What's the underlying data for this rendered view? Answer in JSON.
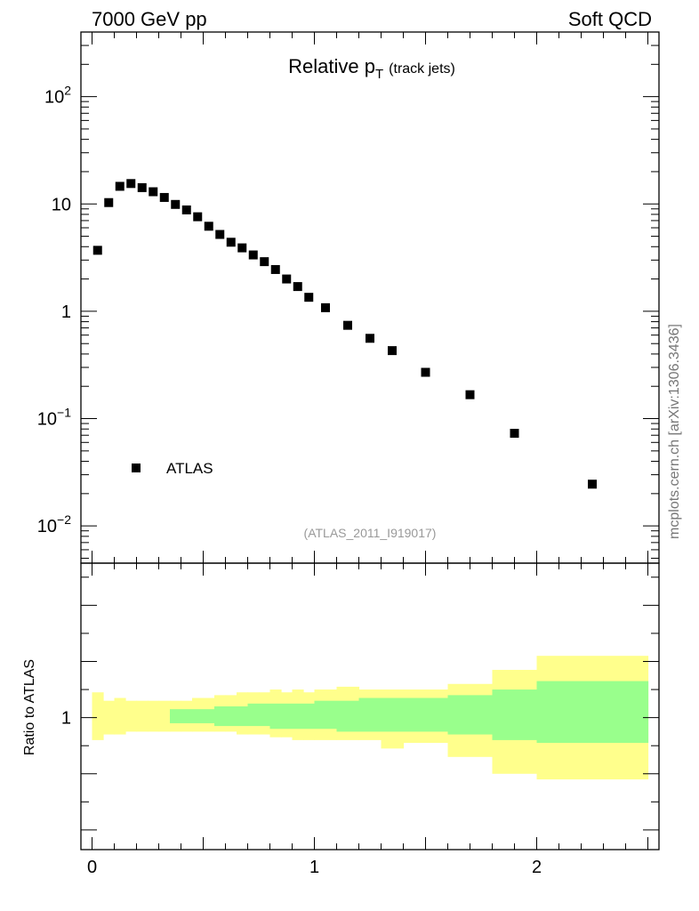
{
  "header": {
    "left": "7000 GeV pp",
    "right": "Soft QCD"
  },
  "side_label": "mcplots.cern.ch [arXiv:1306.3436]",
  "chart_data": [
    {
      "type": "scatter",
      "title": "Relative p",
      "title_subscript": "T",
      "title_suffix": "(track jets)",
      "y_scale": "log",
      "ylim": [
        0.0045,
        400
      ],
      "xlim": [
        -0.05,
        2.55
      ],
      "y_tick_labels": [
        {
          "value": 100,
          "base": "10",
          "exp": "2"
        },
        {
          "value": 10,
          "text": "10"
        },
        {
          "value": 1,
          "text": "1"
        },
        {
          "value": 0.1,
          "base": "10",
          "exp": "−1"
        },
        {
          "value": 0.01,
          "base": "10",
          "exp": "−2"
        }
      ],
      "legend": {
        "position": "bottom-left",
        "entries": [
          "ATLAS"
        ]
      },
      "annotation": "(ATLAS_2011_I919017)",
      "series": [
        {
          "name": "ATLAS",
          "marker": "square",
          "color": "#000000",
          "points": [
            [
              0.025,
              3.7
            ],
            [
              0.075,
              10.3
            ],
            [
              0.125,
              14.6
            ],
            [
              0.175,
              15.5
            ],
            [
              0.225,
              14.2
            ],
            [
              0.275,
              13.0
            ],
            [
              0.325,
              11.5
            ],
            [
              0.375,
              9.9
            ],
            [
              0.425,
              8.8
            ],
            [
              0.475,
              7.6
            ],
            [
              0.525,
              6.2
            ],
            [
              0.575,
              5.2
            ],
            [
              0.625,
              4.4
            ],
            [
              0.675,
              3.9
            ],
            [
              0.725,
              3.35
            ],
            [
              0.775,
              2.9
            ],
            [
              0.825,
              2.45
            ],
            [
              0.875,
              2.0
            ],
            [
              0.925,
              1.7
            ],
            [
              0.975,
              1.35
            ],
            [
              1.05,
              1.08
            ],
            [
              1.15,
              0.74
            ],
            [
              1.25,
              0.56
            ],
            [
              1.35,
              0.43
            ],
            [
              1.5,
              0.27
            ],
            [
              1.7,
              0.167
            ],
            [
              1.9,
              0.073
            ],
            [
              2.25,
              0.0245
            ]
          ]
        }
      ]
    },
    {
      "type": "area",
      "ylabel": "Ratio to ATLAS",
      "xlim": [
        -0.05,
        2.55
      ],
      "ylim": [
        0.53,
        1.55
      ],
      "x_tick_labels": [
        {
          "value": 0,
          "text": "0"
        },
        {
          "value": 1,
          "text": "1"
        },
        {
          "value": 2,
          "text": "2"
        }
      ],
      "y_tick_labels": [
        {
          "value": 1,
          "text": "1"
        }
      ],
      "colors": {
        "stat": "#99ff8c",
        "total": "#ffff8c"
      },
      "bands": [
        {
          "x0": 0.0,
          "x1": 0.05,
          "inner": [
            1.0,
            1.0
          ],
          "outer": [
            0.92,
            1.09
          ]
        },
        {
          "x0": 0.05,
          "x1": 0.1,
          "inner": [
            1.0,
            1.0
          ],
          "outer": [
            0.94,
            1.06
          ]
        },
        {
          "x0": 0.1,
          "x1": 0.15,
          "inner": [
            1.0,
            1.0
          ],
          "outer": [
            0.94,
            1.07
          ]
        },
        {
          "x0": 0.15,
          "x1": 0.2,
          "inner": [
            1.0,
            1.0
          ],
          "outer": [
            0.95,
            1.06
          ]
        },
        {
          "x0": 0.2,
          "x1": 0.25,
          "inner": [
            1.0,
            1.0
          ],
          "outer": [
            0.95,
            1.06
          ]
        },
        {
          "x0": 0.25,
          "x1": 0.3,
          "inner": [
            1.0,
            1.0
          ],
          "outer": [
            0.95,
            1.06
          ]
        },
        {
          "x0": 0.3,
          "x1": 0.35,
          "inner": [
            1.0,
            1.0
          ],
          "outer": [
            0.95,
            1.06
          ]
        },
        {
          "x0": 0.35,
          "x1": 0.4,
          "inner": [
            0.98,
            1.03
          ],
          "outer": [
            0.95,
            1.06
          ]
        },
        {
          "x0": 0.4,
          "x1": 0.45,
          "inner": [
            0.98,
            1.03
          ],
          "outer": [
            0.95,
            1.06
          ]
        },
        {
          "x0": 0.45,
          "x1": 0.5,
          "inner": [
            0.98,
            1.03
          ],
          "outer": [
            0.95,
            1.07
          ]
        },
        {
          "x0": 0.5,
          "x1": 0.55,
          "inner": [
            0.98,
            1.03
          ],
          "outer": [
            0.95,
            1.07
          ]
        },
        {
          "x0": 0.55,
          "x1": 0.6,
          "inner": [
            0.97,
            1.04
          ],
          "outer": [
            0.95,
            1.08
          ]
        },
        {
          "x0": 0.6,
          "x1": 0.65,
          "inner": [
            0.97,
            1.04
          ],
          "outer": [
            0.95,
            1.08
          ]
        },
        {
          "x0": 0.65,
          "x1": 0.7,
          "inner": [
            0.97,
            1.04
          ],
          "outer": [
            0.94,
            1.09
          ]
        },
        {
          "x0": 0.7,
          "x1": 0.75,
          "inner": [
            0.97,
            1.05
          ],
          "outer": [
            0.94,
            1.09
          ]
        },
        {
          "x0": 0.75,
          "x1": 0.8,
          "inner": [
            0.97,
            1.05
          ],
          "outer": [
            0.94,
            1.09
          ]
        },
        {
          "x0": 0.8,
          "x1": 0.85,
          "inner": [
            0.96,
            1.05
          ],
          "outer": [
            0.93,
            1.1
          ]
        },
        {
          "x0": 0.85,
          "x1": 0.9,
          "inner": [
            0.96,
            1.05
          ],
          "outer": [
            0.93,
            1.09
          ]
        },
        {
          "x0": 0.9,
          "x1": 0.95,
          "inner": [
            0.96,
            1.05
          ],
          "outer": [
            0.92,
            1.1
          ]
        },
        {
          "x0": 0.95,
          "x1": 1.0,
          "inner": [
            0.96,
            1.05
          ],
          "outer": [
            0.92,
            1.09
          ]
        },
        {
          "x0": 1.0,
          "x1": 1.1,
          "inner": [
            0.96,
            1.06
          ],
          "outer": [
            0.92,
            1.1
          ]
        },
        {
          "x0": 1.1,
          "x1": 1.2,
          "inner": [
            0.95,
            1.06
          ],
          "outer": [
            0.92,
            1.11
          ]
        },
        {
          "x0": 1.2,
          "x1": 1.3,
          "inner": [
            0.95,
            1.07
          ],
          "outer": [
            0.92,
            1.1
          ]
        },
        {
          "x0": 1.3,
          "x1": 1.4,
          "inner": [
            0.95,
            1.07
          ],
          "outer": [
            0.89,
            1.1
          ]
        },
        {
          "x0": 1.4,
          "x1": 1.6,
          "inner": [
            0.95,
            1.07
          ],
          "outer": [
            0.91,
            1.1
          ]
        },
        {
          "x0": 1.6,
          "x1": 1.8,
          "inner": [
            0.94,
            1.08
          ],
          "outer": [
            0.86,
            1.12
          ]
        },
        {
          "x0": 1.8,
          "x1": 2.0,
          "inner": [
            0.92,
            1.1
          ],
          "outer": [
            0.8,
            1.17
          ]
        },
        {
          "x0": 2.0,
          "x1": 2.5,
          "inner": [
            0.91,
            1.13
          ],
          "outer": [
            0.78,
            1.22
          ]
        }
      ]
    }
  ]
}
